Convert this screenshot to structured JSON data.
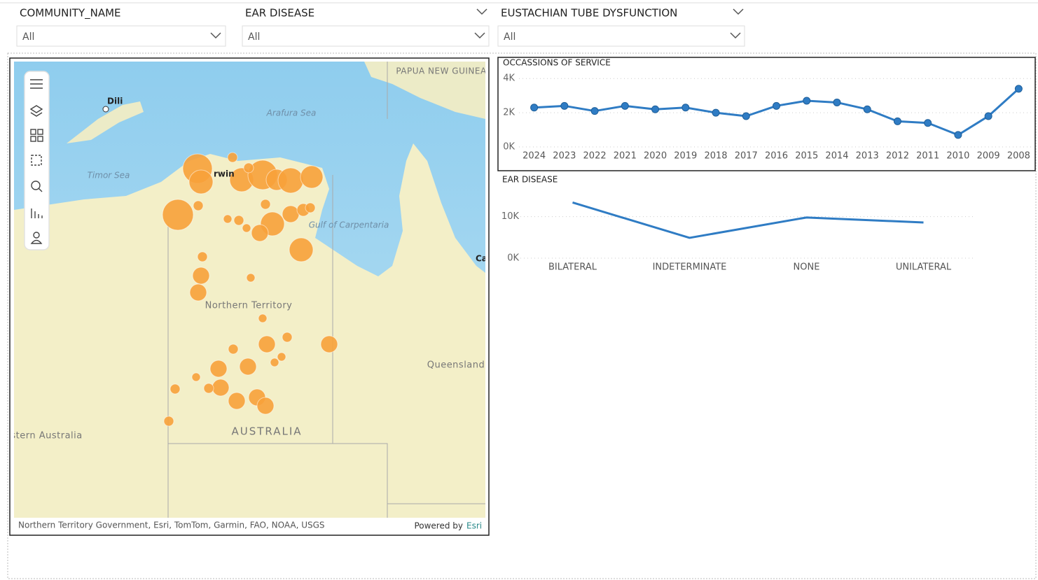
{
  "filters": [
    {
      "label": "COMMUNITY_NAME",
      "value": "All"
    },
    {
      "label": "EAR DISEASE",
      "value": "All"
    },
    {
      "label": "EUSTACHIAN TUBE DYSFUNCTION",
      "value": "All"
    }
  ],
  "map": {
    "labels": [
      "PAPUA NEW GUINEA",
      "Dili",
      "Arafura Sea",
      "Timor Sea",
      "rwin",
      "Gulf of Carpentaria",
      "Northern Territory",
      "Queensland",
      "Western Australia",
      "AUSTRALIA",
      "Ca"
    ],
    "attribution": "Northern Territory Government, Esri, TomTom, Garmin, FAO, NOAA, USGS",
    "powered_by": "Powered by",
    "esri": "Esri"
  },
  "chart_data": [
    {
      "type": "line",
      "title": "OCCASSIONS OF SERVICE",
      "categories": [
        "2024",
        "2023",
        "2022",
        "2021",
        "2020",
        "2019",
        "2018",
        "2017",
        "2016",
        "2015",
        "2014",
        "2013",
        "2012",
        "2011",
        "2010",
        "2009",
        "2008"
      ],
      "values": [
        2300,
        2400,
        2100,
        2400,
        2200,
        2300,
        2000,
        1800,
        2400,
        2700,
        2600,
        2200,
        1500,
        1400,
        700,
        1800,
        3400
      ],
      "color": "#2f7cc4",
      "markers": true,
      "ylim": [
        0,
        4500
      ],
      "yticks": [
        {
          "value": 0,
          "label": "0K"
        },
        {
          "value": 2000,
          "label": "2K"
        },
        {
          "value": 4000,
          "label": "4K"
        }
      ],
      "grid": true
    },
    {
      "type": "line",
      "title": "EAR DISEASE",
      "categories": [
        "BILATERAL",
        "INDETERMINATE",
        "NONE",
        "UNILATERAL"
      ],
      "values": [
        13400,
        4900,
        9800,
        8600
      ],
      "color": "#2f7cc4",
      "markers": false,
      "ylim": [
        0,
        15000
      ],
      "yticks": [
        {
          "value": 0,
          "label": "0K"
        },
        {
          "value": 10000,
          "label": "10K"
        }
      ],
      "grid": true
    }
  ]
}
